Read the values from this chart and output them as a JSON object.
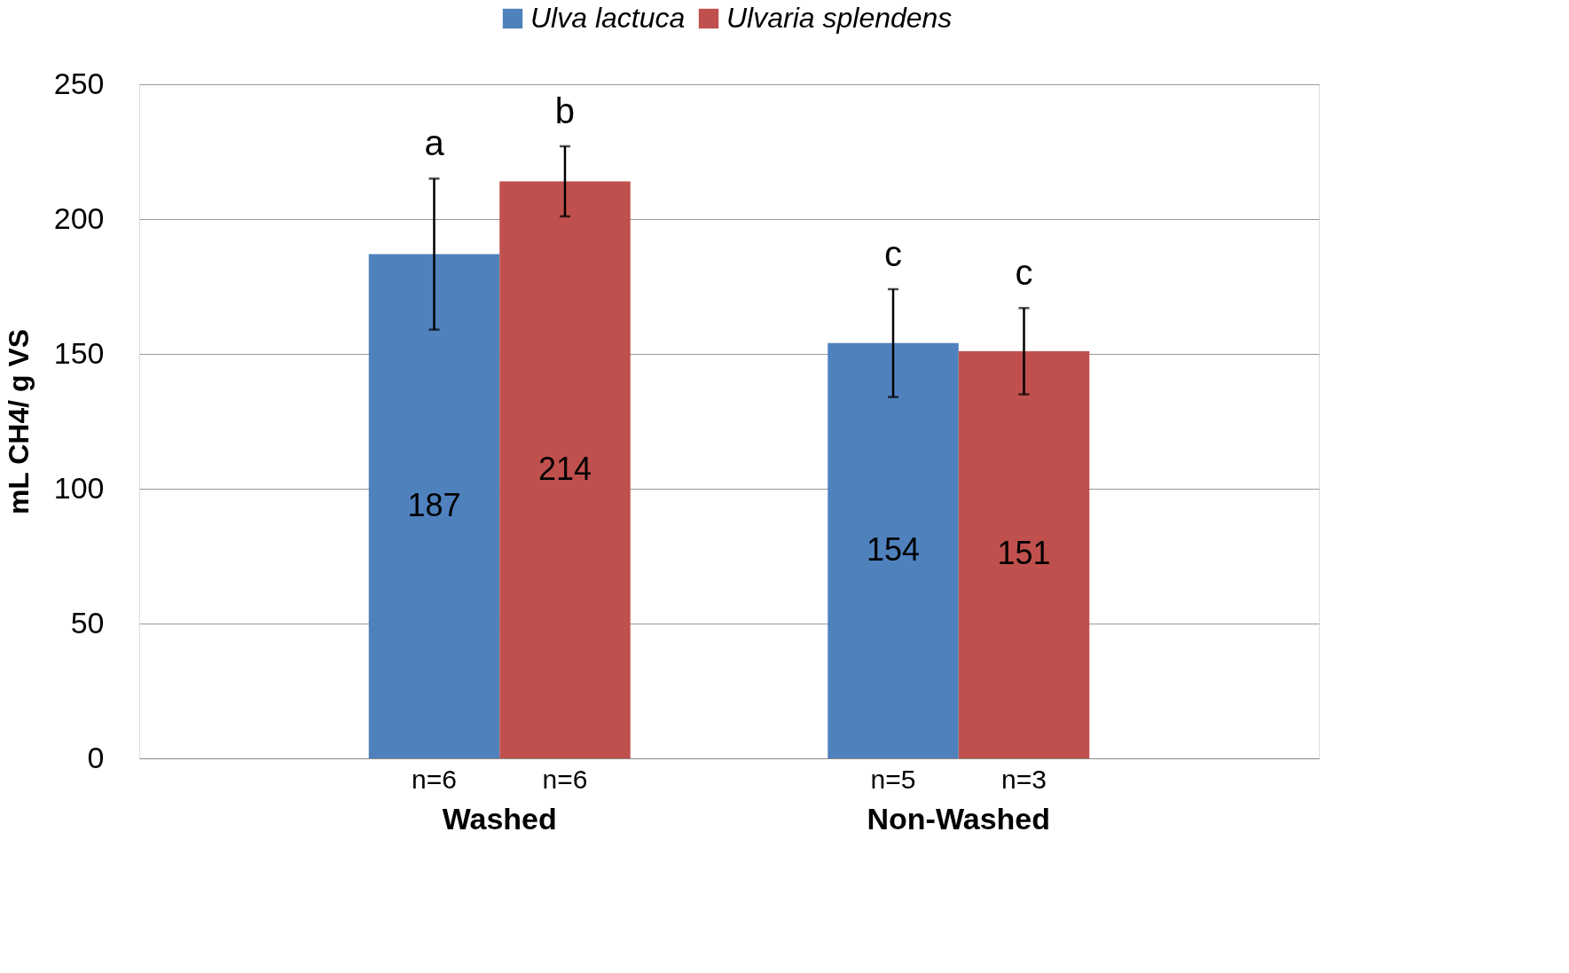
{
  "chart_data": {
    "type": "bar",
    "ylabel": "mL CH4/ g VS",
    "categories": [
      "Washed",
      "Non-Washed"
    ],
    "series": [
      {
        "name": "Ulva lactuca",
        "color": "#4f81bd",
        "values": [
          187,
          154
        ],
        "errors": [
          28,
          20
        ]
      },
      {
        "name": "Ulvaria splendens",
        "color": "#c0504d",
        "values": [
          214,
          151
        ],
        "errors": [
          13,
          16
        ]
      }
    ],
    "ylim": [
      0,
      250
    ],
    "yticks": [
      0,
      50,
      100,
      150,
      200,
      250
    ],
    "grid": "y",
    "legend": "top",
    "data_labels": true,
    "annotations": [
      "a",
      "b",
      "c",
      "c",
      "n=6",
      "n=6",
      "n=5",
      "n=3"
    ]
  }
}
